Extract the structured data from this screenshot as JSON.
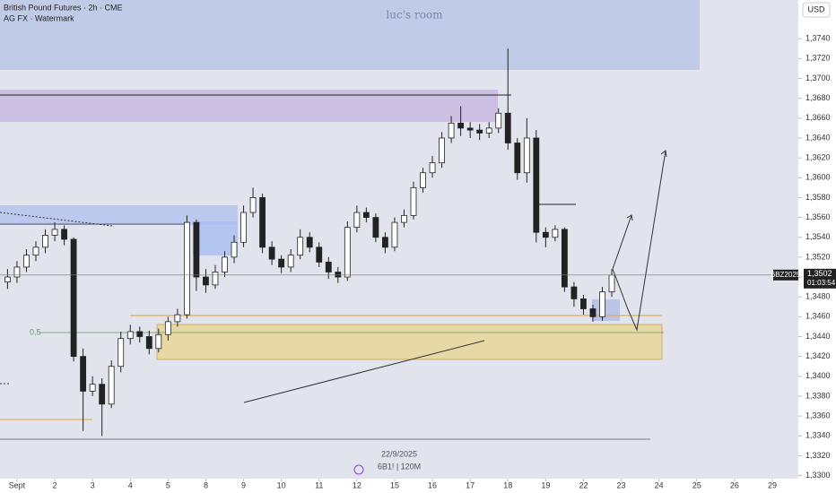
{
  "chart_data": {
    "type": "candlestick",
    "title": "British Pound Futures · 2h · CME",
    "subtitle": "AG FX · Watermark",
    "watermark": "luc's room",
    "currency": "USD",
    "symbol": "6BZ2025",
    "countdown": "01:03:54",
    "fib_label": "0,5",
    "date_label": "22/9/2025",
    "footer": "6B1! | 120M",
    "last_price": {
      "value": 1.3502,
      "label": "1,3502"
    },
    "up_color": "#ffffff",
    "down_color": "#222222",
    "wick_color": "#222222",
    "xlim": [
      -0.45,
      20.69
    ],
    "ylim": [
      1.3296,
      1.3779
    ],
    "xticks": [
      {
        "value": 0,
        "label": "Sept"
      },
      {
        "value": 1,
        "label": "2"
      },
      {
        "value": 2,
        "label": "3"
      },
      {
        "value": 3,
        "label": "4"
      },
      {
        "value": 4,
        "label": "5"
      },
      {
        "value": 5,
        "label": "8"
      },
      {
        "value": 6,
        "label": "9"
      },
      {
        "value": 7,
        "label": "10"
      },
      {
        "value": 8,
        "label": "11"
      },
      {
        "value": 9,
        "label": "12"
      },
      {
        "value": 10,
        "label": "15"
      },
      {
        "value": 11,
        "label": "16"
      },
      {
        "value": 12,
        "label": "17"
      },
      {
        "value": 13,
        "label": "18"
      },
      {
        "value": 14,
        "label": "19"
      },
      {
        "value": 15,
        "label": "22"
      },
      {
        "value": 16,
        "label": "23"
      },
      {
        "value": 17,
        "label": "24"
      },
      {
        "value": 18,
        "label": "25"
      },
      {
        "value": 19,
        "label": "26"
      },
      {
        "value": 20,
        "label": "29"
      }
    ],
    "yticks": [
      {
        "value": 1.33,
        "label": "1,3300"
      },
      {
        "value": 1.332,
        "label": "1,3320"
      },
      {
        "value": 1.334,
        "label": "1,3340"
      },
      {
        "value": 1.336,
        "label": "1,3360"
      },
      {
        "value": 1.338,
        "label": "1,3380"
      },
      {
        "value": 1.34,
        "label": "1,3400"
      },
      {
        "value": 1.342,
        "label": "1,3420"
      },
      {
        "value": 1.344,
        "label": "1,3440"
      },
      {
        "value": 1.346,
        "label": "1,3460"
      },
      {
        "value": 1.348,
        "label": "1,3480"
      },
      {
        "value": 1.35,
        "label": "1,3500"
      },
      {
        "value": 1.352,
        "label": "1,3520"
      },
      {
        "value": 1.354,
        "label": "1,3540"
      },
      {
        "value": 1.356,
        "label": "1,3560"
      },
      {
        "value": 1.358,
        "label": "1,3580"
      },
      {
        "value": 1.36,
        "label": "1,3600"
      },
      {
        "value": 1.362,
        "label": "1,3620"
      },
      {
        "value": 1.364,
        "label": "1,3640"
      },
      {
        "value": 1.366,
        "label": "1,3660"
      },
      {
        "value": 1.368,
        "label": "1,3680"
      },
      {
        "value": 1.37,
        "label": "1,3700"
      },
      {
        "value": 1.372,
        "label": "1,3720"
      },
      {
        "value": 1.374,
        "label": "1,3740"
      }
    ],
    "x": [
      -0.25,
      0,
      0.25,
      0.5,
      0.75,
      1,
      1.25,
      1.5,
      1.75,
      2,
      2.25,
      2.5,
      2.75,
      3,
      3.25,
      3.5,
      3.75,
      4,
      4.25,
      4.5,
      4.75,
      5,
      5.25,
      5.5,
      5.75,
      6,
      6.25,
      6.5,
      6.75,
      7,
      7.25,
      7.5,
      7.75,
      8,
      8.25,
      8.5,
      8.75,
      9,
      9.25,
      9.5,
      9.75,
      10,
      10.25,
      10.5,
      10.75,
      11,
      11.25,
      11.5,
      11.75,
      12,
      12.25,
      12.5,
      12.75,
      13,
      13.25,
      13.5,
      13.75,
      14,
      14.25,
      14.5,
      14.75,
      15,
      15.25,
      15.5,
      15.75
    ],
    "open": [
      1.3495,
      1.35,
      1.351,
      1.3522,
      1.353,
      1.3542,
      1.3548,
      1.3538,
      1.342,
      1.3385,
      1.3392,
      1.3372,
      1.341,
      1.3438,
      1.3445,
      1.344,
      1.3428,
      1.3442,
      1.3455,
      1.3462,
      1.3555,
      1.35,
      1.3492,
      1.3505,
      1.352,
      1.3535,
      1.3565,
      1.358,
      1.353,
      1.3518,
      1.351,
      1.3522,
      1.354,
      1.353,
      1.3515,
      1.3505,
      1.35,
      1.355,
      1.3565,
      1.356,
      1.354,
      1.353,
      1.3555,
      1.3562,
      1.359,
      1.3605,
      1.3615,
      1.364,
      1.3655,
      1.365,
      1.3648,
      1.3645,
      1.365,
      1.3665,
      1.3635,
      1.3605,
      1.364,
      1.3545,
      1.354,
      1.3548,
      1.349,
      1.3478,
      1.3468,
      1.346,
      1.3485
    ],
    "high": [
      1.3508,
      1.3516,
      1.3528,
      1.3536,
      1.3548,
      1.3555,
      1.3552,
      1.354,
      1.3428,
      1.34,
      1.3398,
      1.3416,
      1.3445,
      1.3452,
      1.345,
      1.3446,
      1.3448,
      1.346,
      1.3468,
      1.3562,
      1.3558,
      1.3508,
      1.3512,
      1.3526,
      1.3542,
      1.3572,
      1.359,
      1.3584,
      1.3536,
      1.3522,
      1.3528,
      1.3548,
      1.3545,
      1.3535,
      1.352,
      1.351,
      1.3556,
      1.3572,
      1.357,
      1.3564,
      1.3545,
      1.356,
      1.3568,
      1.3596,
      1.361,
      1.3622,
      1.3646,
      1.3662,
      1.3672,
      1.3656,
      1.3654,
      1.3656,
      1.367,
      1.373,
      1.364,
      1.366,
      1.3648,
      1.355,
      1.3552,
      1.355,
      1.3495,
      1.3482,
      1.3472,
      1.349,
      1.3508
    ],
    "low": [
      1.3488,
      1.3494,
      1.3505,
      1.3516,
      1.3524,
      1.3536,
      1.3532,
      1.3415,
      1.3345,
      1.338,
      1.334,
      1.3368,
      1.3404,
      1.3432,
      1.3434,
      1.3422,
      1.3424,
      1.3436,
      1.345,
      1.3458,
      1.3486,
      1.3484,
      1.3488,
      1.35,
      1.3514,
      1.353,
      1.356,
      1.3524,
      1.3512,
      1.3504,
      1.3505,
      1.3518,
      1.3525,
      1.351,
      1.3498,
      1.3494,
      1.3496,
      1.3545,
      1.3555,
      1.3535,
      1.3524,
      1.3526,
      1.355,
      1.3558,
      1.3585,
      1.36,
      1.361,
      1.3635,
      1.3642,
      1.364,
      1.3638,
      1.364,
      1.3645,
      1.3628,
      1.3598,
      1.3595,
      1.3535,
      1.353,
      1.3536,
      1.3485,
      1.347,
      1.3462,
      1.3455,
      1.3456,
      1.348
    ],
    "close": [
      1.35,
      1.351,
      1.3522,
      1.353,
      1.3542,
      1.3548,
      1.3538,
      1.342,
      1.3385,
      1.3392,
      1.3372,
      1.341,
      1.3438,
      1.3445,
      1.344,
      1.3428,
      1.3442,
      1.3455,
      1.3462,
      1.3555,
      1.35,
      1.3492,
      1.3505,
      1.352,
      1.3535,
      1.3565,
      1.358,
      1.353,
      1.3518,
      1.351,
      1.3522,
      1.354,
      1.353,
      1.3515,
      1.3505,
      1.35,
      1.355,
      1.3565,
      1.356,
      1.354,
      1.353,
      1.3555,
      1.3562,
      1.359,
      1.3605,
      1.3615,
      1.364,
      1.3655,
      1.365,
      1.3648,
      1.3645,
      1.365,
      1.3665,
      1.3635,
      1.3605,
      1.364,
      1.3545,
      1.354,
      1.3548,
      1.349,
      1.3478,
      1.3468,
      1.346,
      1.3485,
      1.3502
    ]
  }
}
